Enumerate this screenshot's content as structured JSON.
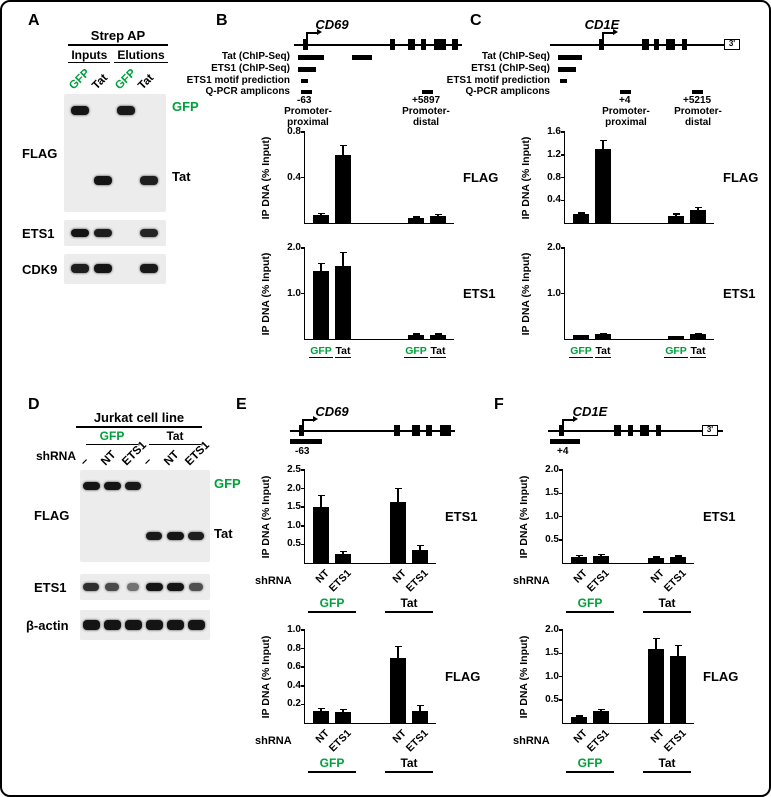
{
  "colors": {
    "gfp_green": "#00A03C",
    "band": "#141414",
    "bar": "#000000",
    "background": "#ffffff"
  },
  "panels": {
    "A": {
      "letter": "A",
      "header": "Strep AP",
      "col_groups": [
        "Inputs",
        "Elutions"
      ],
      "lanes": [
        {
          "text": "GFP",
          "green": true
        },
        {
          "text": "Tat"
        },
        {
          "text": "GFP",
          "green": true
        },
        {
          "text": "Tat"
        }
      ],
      "row_labels": [
        "FLAG",
        "ETS1",
        "CDK9"
      ],
      "side_labels": [
        {
          "text": "GFP",
          "green": true
        },
        {
          "text": "Tat"
        }
      ]
    },
    "B": {
      "letter": "B",
      "gene": "CD69",
      "track_labels": [
        "Tat (ChIP-Seq)",
        "ETS1 (ChIP-Seq)",
        "ETS1 motif prediction",
        "Q-PCR amplicons"
      ],
      "amplicon_proximal": "-63",
      "amplicon_distal": "+5897",
      "region_proximal": "Promoter-\nproximal",
      "region_distal": "Promoter-\ndistal"
    },
    "C": {
      "letter": "C",
      "gene": "CD1E",
      "three_prime": "3'",
      "track_labels": [
        "Tat (ChIP-Seq)",
        "ETS1 (ChIP-Seq)",
        "ETS1 motif prediction",
        "Q-PCR amplicons"
      ],
      "amplicon_proximal": "+4",
      "amplicon_distal": "+5215",
      "region_proximal": "Promoter-\nproximal",
      "region_distal": "Promoter-\ndistal"
    },
    "D": {
      "letter": "D",
      "header": "Jurkat cell line",
      "col_groups": [
        {
          "text": "GFP",
          "green": true
        },
        {
          "text": "Tat"
        }
      ],
      "shrna_label": "shRNA",
      "lanes": [
        {
          "text": "–"
        },
        {
          "text": "NT"
        },
        {
          "text": "ETS1"
        },
        {
          "text": "–"
        },
        {
          "text": "NT"
        },
        {
          "text": "ETS1"
        }
      ],
      "row_labels": [
        "FLAG",
        "ETS1",
        "β-actin"
      ],
      "side_labels": [
        {
          "text": "GFP",
          "green": true
        },
        {
          "text": "Tat"
        }
      ]
    },
    "E": {
      "letter": "E",
      "gene": "CD69",
      "amplicon_label": "-63"
    },
    "F": {
      "letter": "F",
      "gene": "CD1E",
      "amplicon_label": "+4",
      "three_prime": "3'"
    }
  },
  "blots": {
    "a_flag": {
      "band_w": 18,
      "band_h": 9,
      "lane_centers": [
        16,
        39,
        62,
        85
      ],
      "rows": [
        {
          "y": 12,
          "bands": [
            1,
            0,
            0.95,
            0
          ]
        },
        {
          "y": 82,
          "bands": [
            0,
            1,
            0,
            0.9
          ]
        }
      ]
    },
    "a_ets1": {
      "band_w": 18,
      "band_h": 8,
      "lane_centers": [
        16,
        39,
        62,
        85
      ],
      "rows": [
        {
          "y": 9,
          "bands": [
            1,
            0.9,
            0,
            0.85
          ]
        }
      ]
    },
    "a_cdk9": {
      "band_w": 18,
      "band_h": 9,
      "lane_centers": [
        16,
        39,
        62,
        85
      ],
      "rows": [
        {
          "y": 10,
          "bands": [
            0.9,
            1,
            0,
            0.95
          ]
        }
      ]
    },
    "d_flag": {
      "band_w": 17,
      "band_h": 8,
      "lane_centers": [
        11,
        32,
        53,
        74,
        95,
        116
      ],
      "rows": [
        {
          "y": 12,
          "bands": [
            1,
            1,
            0.95,
            0,
            0,
            0
          ]
        },
        {
          "y": 62,
          "bands": [
            0,
            0,
            0,
            0.95,
            1,
            0.9
          ]
        }
      ]
    },
    "d_ets1": {
      "band_w": 17,
      "band_h": 8,
      "lane_centers": [
        11,
        32,
        53,
        74,
        95,
        116
      ],
      "rows": [
        {
          "y": 9,
          "bands": [
            0.75,
            0.5,
            0.12,
            1,
            1,
            0.45
          ]
        }
      ]
    },
    "d_actin": {
      "band_w": 17,
      "band_h": 10,
      "lane_centers": [
        11,
        32,
        53,
        74,
        95,
        116
      ],
      "rows": [
        {
          "y": 10,
          "bands": [
            1,
            1,
            1,
            1,
            1,
            1
          ]
        }
      ]
    }
  },
  "chart_data": [
    {
      "id": "b_flag",
      "type": "bar",
      "panel": "B",
      "gene": "CD69",
      "ylabel": "IP DNA (% Input)",
      "side_label": "FLAG",
      "ymax": 0.8,
      "yticks": [
        "0.4",
        "0.8"
      ],
      "categories": [
        "GFP",
        "Tat",
        "GFP",
        "Tat"
      ],
      "group_categories": [
        "Promoter-proximal",
        "Promoter-distal"
      ],
      "values": [
        0.07,
        0.6,
        0.04,
        0.06
      ],
      "errors": [
        0.01,
        0.08,
        0.01,
        0.01
      ],
      "xlabels": null
    },
    {
      "id": "b_ets1",
      "type": "bar",
      "panel": "B",
      "gene": "CD69",
      "ylabel": "IP DNA (% Input)",
      "side_label": "ETS1",
      "ymax": 2.0,
      "yticks": [
        "1.0",
        "2.0"
      ],
      "categories": [
        "GFP",
        "Tat",
        "GFP",
        "Tat"
      ],
      "group_categories": [
        "Promoter-proximal",
        "Promoter-distal"
      ],
      "values": [
        1.5,
        1.6,
        0.08,
        0.08
      ],
      "errors": [
        0.15,
        0.3,
        0.02,
        0.02
      ],
      "xlabels": {
        "style": "flat",
        "items": [
          {
            "text": "GFP",
            "green": true
          },
          {
            "text": "Tat"
          },
          {
            "text": "GFP",
            "green": true
          },
          {
            "text": "Tat"
          }
        ]
      }
    },
    {
      "id": "c_flag",
      "type": "bar",
      "panel": "C",
      "gene": "CD1E",
      "ylabel": "IP DNA (% Input)",
      "side_label": "FLAG",
      "ymax": 1.6,
      "yticks": [
        "0.4",
        "0.8",
        "1.2",
        "1.6"
      ],
      "categories": [
        "GFP",
        "Tat",
        "GFP",
        "Tat"
      ],
      "group_categories": [
        "Promoter-proximal",
        "Promoter-distal"
      ],
      "values": [
        0.15,
        1.3,
        0.13,
        0.22
      ],
      "errors": [
        0.02,
        0.15,
        0.02,
        0.04
      ],
      "xlabels": null
    },
    {
      "id": "c_ets1",
      "type": "bar",
      "panel": "C",
      "gene": "CD1E",
      "ylabel": "IP DNA (% Input)",
      "side_label": "ETS1",
      "ymax": 2.0,
      "yticks": [
        "1.0",
        "2.0"
      ],
      "categories": [
        "GFP",
        "Tat",
        "GFP",
        "Tat"
      ],
      "group_categories": [
        "Promoter-proximal",
        "Promoter-distal"
      ],
      "values": [
        0.08,
        0.1,
        0.07,
        0.1
      ],
      "errors": [
        0.01,
        0.02,
        0.01,
        0.02
      ],
      "xlabels": {
        "style": "flat",
        "items": [
          {
            "text": "GFP",
            "green": true
          },
          {
            "text": "Tat"
          },
          {
            "text": "GFP",
            "green": true
          },
          {
            "text": "Tat"
          }
        ]
      }
    },
    {
      "id": "e_ets1",
      "type": "bar",
      "panel": "E",
      "gene": "CD69",
      "ylabel": "IP DNA (% Input)",
      "side_label": "ETS1",
      "ymax": 2.5,
      "yticks": [
        "0.5",
        "1.0",
        "1.5",
        "2.0",
        "2.5"
      ],
      "categories": [
        "NT",
        "ETS1",
        "NT",
        "ETS1"
      ],
      "group_categories": [
        "GFP",
        "Tat"
      ],
      "values": [
        1.5,
        0.25,
        1.65,
        0.35
      ],
      "errors": [
        0.3,
        0.05,
        0.35,
        0.1
      ],
      "xlabels": {
        "style": "rotated",
        "axis_label": "shRNA",
        "items": [
          {
            "text": "NT"
          },
          {
            "text": "ETS1"
          },
          {
            "text": "NT"
          },
          {
            "text": "ETS1"
          }
        ],
        "groups": [
          {
            "text": "GFP",
            "green": true
          },
          {
            "text": "Tat"
          }
        ]
      }
    },
    {
      "id": "e_flag",
      "type": "bar",
      "panel": "E",
      "gene": "CD69",
      "ylabel": "IP DNA (% Input)",
      "side_label": "FLAG",
      "ymax": 1.0,
      "yticks": [
        "0.2",
        "0.4",
        "0.6",
        "0.8",
        "1.0"
      ],
      "categories": [
        "NT",
        "ETS1",
        "NT",
        "ETS1"
      ],
      "group_categories": [
        "GFP",
        "Tat"
      ],
      "values": [
        0.13,
        0.12,
        0.7,
        0.13
      ],
      "errors": [
        0.02,
        0.02,
        0.12,
        0.05
      ],
      "xlabels": {
        "style": "rotated",
        "axis_label": "shRNA",
        "items": [
          {
            "text": "NT"
          },
          {
            "text": "ETS1"
          },
          {
            "text": "NT"
          },
          {
            "text": "ETS1"
          }
        ],
        "groups": [
          {
            "text": "GFP",
            "green": true
          },
          {
            "text": "Tat"
          }
        ]
      }
    },
    {
      "id": "f_ets1",
      "type": "bar",
      "panel": "F",
      "gene": "CD1E",
      "ylabel": "IP DNA (% Input)",
      "side_label": "ETS1",
      "ymax": 2.0,
      "yticks": [
        "0.5",
        "1.0",
        "1.5",
        "2.0"
      ],
      "categories": [
        "NT",
        "ETS1",
        "NT",
        "ETS1"
      ],
      "group_categories": [
        "GFP",
        "Tat"
      ],
      "values": [
        0.13,
        0.15,
        0.1,
        0.12
      ],
      "errors": [
        0.02,
        0.02,
        0.02,
        0.02
      ],
      "xlabels": {
        "style": "rotated",
        "axis_label": "shRNA",
        "items": [
          {
            "text": "NT"
          },
          {
            "text": "ETS1"
          },
          {
            "text": "NT"
          },
          {
            "text": "ETS1"
          }
        ],
        "groups": [
          {
            "text": "GFP",
            "green": true
          },
          {
            "text": "Tat"
          }
        ]
      }
    },
    {
      "id": "f_flag",
      "type": "bar",
      "panel": "F",
      "gene": "CD1E",
      "ylabel": "IP DNA (% Input)",
      "side_label": "FLAG",
      "ymax": 2.0,
      "yticks": [
        "0.5",
        "1.0",
        "1.5",
        "2.0"
      ],
      "categories": [
        "NT",
        "ETS1",
        "NT",
        "ETS1"
      ],
      "group_categories": [
        "GFP",
        "Tat"
      ],
      "values": [
        0.12,
        0.25,
        1.6,
        1.45
      ],
      "errors": [
        0.02,
        0.03,
        0.2,
        0.2
      ],
      "xlabels": {
        "style": "rotated",
        "axis_label": "shRNA",
        "items": [
          {
            "text": "NT"
          },
          {
            "text": "ETS1"
          },
          {
            "text": "NT"
          },
          {
            "text": "ETS1"
          }
        ],
        "groups": [
          {
            "text": "GFP",
            "green": true
          },
          {
            "text": "Tat"
          }
        ]
      }
    }
  ]
}
